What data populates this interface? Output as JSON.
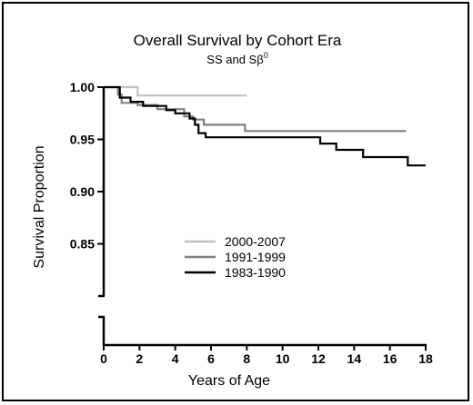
{
  "chart_data": {
    "type": "line",
    "step": true,
    "title": "Overall Survival by Cohort Era",
    "subtitle": {
      "prefix": "SS and S",
      "symbol": "β",
      "superscript": "0"
    },
    "xlabel": "Years of Age",
    "ylabel": "Survival Proportion",
    "xlim": [
      0,
      18
    ],
    "ylim": [
      0.8,
      1.0
    ],
    "axis_break": true,
    "x_ticks": [
      "0",
      "2",
      "4",
      "6",
      "8",
      "10",
      "12",
      "14",
      "16",
      "18"
    ],
    "y_ticks": [
      "1.00",
      "0.95",
      "0.90",
      "0.85"
    ],
    "legend_position": "center",
    "series": [
      {
        "name": "2000-2007",
        "color": "#c0c0c0",
        "points": [
          [
            0,
            1.0
          ],
          [
            1.9,
            1.0
          ],
          [
            1.9,
            0.992
          ],
          [
            8.0,
            0.992
          ]
        ]
      },
      {
        "name": "1991-1999",
        "color": "#808080",
        "points": [
          [
            0,
            1.0
          ],
          [
            0.8,
            1.0
          ],
          [
            0.8,
            0.993
          ],
          [
            1.0,
            0.993
          ],
          [
            1.0,
            0.985
          ],
          [
            1.9,
            0.985
          ],
          [
            1.9,
            0.983
          ],
          [
            3.0,
            0.983
          ],
          [
            3.0,
            0.979
          ],
          [
            4.5,
            0.979
          ],
          [
            4.5,
            0.972
          ],
          [
            5.0,
            0.972
          ],
          [
            5.0,
            0.969
          ],
          [
            5.6,
            0.969
          ],
          [
            5.6,
            0.964
          ],
          [
            7.9,
            0.964
          ],
          [
            7.9,
            0.958
          ],
          [
            16.9,
            0.958
          ]
        ]
      },
      {
        "name": "1983-1990",
        "color": "#000000",
        "points": [
          [
            0,
            1.0
          ],
          [
            0.9,
            1.0
          ],
          [
            0.9,
            0.99
          ],
          [
            1.5,
            0.99
          ],
          [
            1.5,
            0.986
          ],
          [
            2.2,
            0.986
          ],
          [
            2.2,
            0.982
          ],
          [
            3.5,
            0.982
          ],
          [
            3.5,
            0.978
          ],
          [
            4.0,
            0.978
          ],
          [
            4.0,
            0.975
          ],
          [
            4.8,
            0.975
          ],
          [
            4.8,
            0.97
          ],
          [
            5.1,
            0.97
          ],
          [
            5.1,
            0.964
          ],
          [
            5.3,
            0.964
          ],
          [
            5.3,
            0.956
          ],
          [
            5.7,
            0.956
          ],
          [
            5.7,
            0.952
          ],
          [
            12.1,
            0.952
          ],
          [
            12.1,
            0.946
          ],
          [
            13.0,
            0.946
          ],
          [
            13.0,
            0.94
          ],
          [
            14.5,
            0.94
          ],
          [
            14.5,
            0.933
          ],
          [
            17.0,
            0.933
          ],
          [
            17.0,
            0.925
          ],
          [
            18.0,
            0.925
          ]
        ]
      }
    ]
  }
}
